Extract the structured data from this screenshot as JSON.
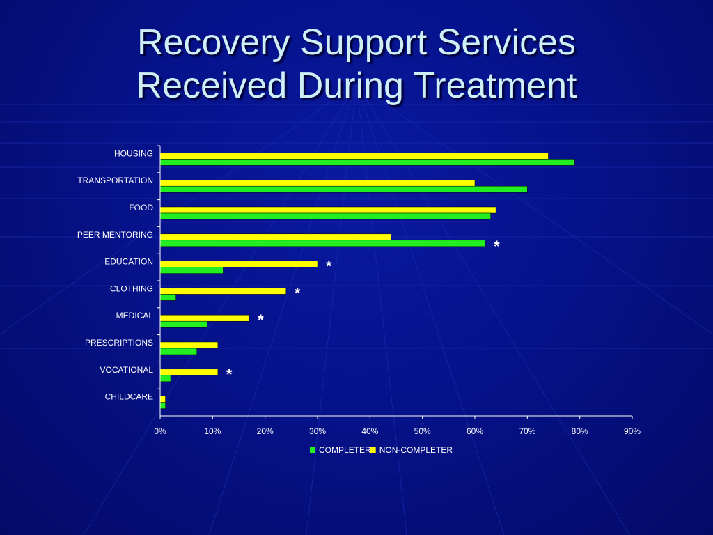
{
  "slide": {
    "title_line1": "Recovery Support Services",
    "title_line2": "Received During Treatment"
  },
  "colors": {
    "completer": "#22ee22",
    "non_completer": "#ffff00",
    "text": "#ffffff",
    "title": "#cfeff7"
  },
  "chart_data": {
    "type": "bar",
    "orientation": "horizontal",
    "categories": [
      "HOUSING",
      "TRANSPORTATION",
      "FOOD",
      "PEER MENTORING",
      "EDUCATION",
      "CLOTHING",
      "MEDICAL",
      "PRESCRIPTIONS",
      "VOCATIONAL",
      "CHILDCARE"
    ],
    "series": [
      {
        "name": "COMPLETER",
        "values": [
          79,
          70,
          63,
          62,
          12,
          3,
          9,
          7,
          2,
          1
        ]
      },
      {
        "name": "NON-COMPLETER",
        "values": [
          74,
          60,
          64,
          44,
          30,
          24,
          17,
          11,
          11,
          1
        ]
      }
    ],
    "significance_markers": [
      "",
      "",
      "",
      "*",
      "*",
      "*",
      "*",
      "",
      "*",
      ""
    ],
    "x_ticks": [
      "0%",
      "10%",
      "20%",
      "30%",
      "40%",
      "50%",
      "60%",
      "70%",
      "80%",
      "90%"
    ],
    "xlim": [
      0,
      90
    ],
    "legend_position": "bottom",
    "grid": false
  }
}
